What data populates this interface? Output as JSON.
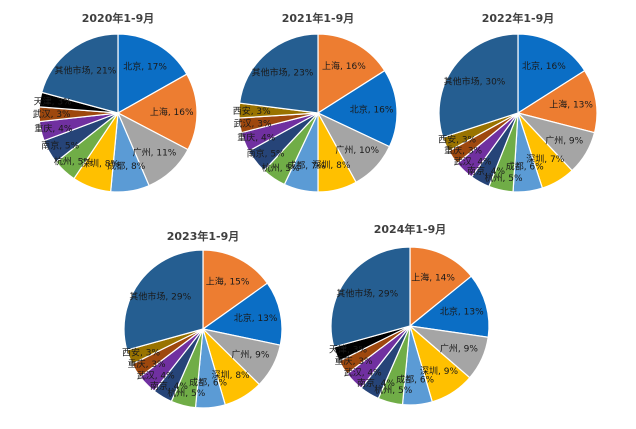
{
  "chart_data": [
    {
      "type": "pie",
      "title": "2020年1-9月",
      "slices": [
        {
          "label": "北京, 17%",
          "value": 17,
          "color": "#0b6ec5"
        },
        {
          "label": "上海, 16%",
          "value": 16,
          "color": "#ed7d31"
        },
        {
          "label": "广州, 11%",
          "value": 11,
          "color": "#a5a5a5"
        },
        {
          "label": "成都, 8%",
          "value": 8,
          "color": "#5b9bd5"
        },
        {
          "label": "深圳, 8%",
          "value": 8,
          "color": "#ffc000"
        },
        {
          "label": "杭州, 5%",
          "value": 5,
          "color": "#70ad47"
        },
        {
          "label": "南京, 5%",
          "value": 5,
          "color": "#264478"
        },
        {
          "label": "重庆, 4%",
          "value": 4,
          "color": "#7030a0"
        },
        {
          "label": "武汉, 3%",
          "value": 3,
          "color": "#9e480e"
        },
        {
          "label": "天津, 3%",
          "value": 3,
          "color": "#000000"
        },
        {
          "label": "其他市场, 21%",
          "value": 21,
          "color": "#255e91"
        }
      ]
    },
    {
      "type": "pie",
      "title": "2021年1-9月",
      "slices": [
        {
          "label": "上海, 16%",
          "value": 16,
          "color": "#ed7d31"
        },
        {
          "label": "北京, 16%",
          "value": 16,
          "color": "#0b6ec5"
        },
        {
          "label": "广州, 10%",
          "value": 10,
          "color": "#a5a5a5"
        },
        {
          "label": "深圳, 8%",
          "value": 8,
          "color": "#ffc000"
        },
        {
          "label": "成都, 7%",
          "value": 7,
          "color": "#5b9bd5"
        },
        {
          "label": "杭州, 5%",
          "value": 5,
          "color": "#70ad47"
        },
        {
          "label": "南京, 5%",
          "value": 5,
          "color": "#264478"
        },
        {
          "label": "重庆, 4%",
          "value": 4,
          "color": "#7030a0"
        },
        {
          "label": "武汉, 3%",
          "value": 3,
          "color": "#9e480e"
        },
        {
          "label": "西安, 3%",
          "value": 3,
          "color": "#997300"
        },
        {
          "label": "其他市场, 23%",
          "value": 23,
          "color": "#255e91"
        }
      ]
    },
    {
      "type": "pie",
      "title": "2022年1-9月",
      "slices": [
        {
          "label": "北京, 16%",
          "value": 16,
          "color": "#0b6ec5"
        },
        {
          "label": "上海, 13%",
          "value": 13,
          "color": "#ed7d31"
        },
        {
          "label": "广州, 9%",
          "value": 9,
          "color": "#a5a5a5"
        },
        {
          "label": "深圳, 7%",
          "value": 7,
          "color": "#ffc000"
        },
        {
          "label": "成都, 6%",
          "value": 6,
          "color": "#5b9bd5"
        },
        {
          "label": "杭州, 5%",
          "value": 5,
          "color": "#70ad47"
        },
        {
          "label": "南京, 4%",
          "value": 4,
          "color": "#264478"
        },
        {
          "label": "武汉, 4%",
          "value": 4,
          "color": "#7030a0"
        },
        {
          "label": "重庆, 3%",
          "value": 3,
          "color": "#9e480e"
        },
        {
          "label": "西安, 3%",
          "value": 3,
          "color": "#997300"
        },
        {
          "label": "其他市场, 30%",
          "value": 30,
          "color": "#255e91"
        }
      ]
    },
    {
      "type": "pie",
      "title": "2023年1-9月",
      "slices": [
        {
          "label": "上海, 15%",
          "value": 15,
          "color": "#ed7d31"
        },
        {
          "label": "北京, 13%",
          "value": 13,
          "color": "#0b6ec5"
        },
        {
          "label": "广州, 9%",
          "value": 9,
          "color": "#a5a5a5"
        },
        {
          "label": "深圳, 8%",
          "value": 8,
          "color": "#ffc000"
        },
        {
          "label": "成都, 6%",
          "value": 6,
          "color": "#5b9bd5"
        },
        {
          "label": "杭州, 5%",
          "value": 5,
          "color": "#70ad47"
        },
        {
          "label": "南京, 4%",
          "value": 4,
          "color": "#264478"
        },
        {
          "label": "武汉, 4%",
          "value": 4,
          "color": "#7030a0"
        },
        {
          "label": "重庆, 3%",
          "value": 3,
          "color": "#9e480e"
        },
        {
          "label": "西安, 3%",
          "value": 3,
          "color": "#997300"
        },
        {
          "label": "其他市场, 29%",
          "value": 29,
          "color": "#255e91"
        }
      ]
    },
    {
      "type": "pie",
      "title": "2024年1-9月",
      "slices": [
        {
          "label": "上海, 14%",
          "value": 14,
          "color": "#ed7d31"
        },
        {
          "label": "北京, 13%",
          "value": 13,
          "color": "#0b6ec5"
        },
        {
          "label": "广州, 9%",
          "value": 9,
          "color": "#a5a5a5"
        },
        {
          "label": "深圳, 9%",
          "value": 9,
          "color": "#ffc000"
        },
        {
          "label": "成都, 6%",
          "value": 6,
          "color": "#5b9bd5"
        },
        {
          "label": "杭州, 5%",
          "value": 5,
          "color": "#70ad47"
        },
        {
          "label": "南京, 4%",
          "value": 4,
          "color": "#264478"
        },
        {
          "label": "武汉, 4%",
          "value": 4,
          "color": "#7030a0"
        },
        {
          "label": "重庆, 3%",
          "value": 3,
          "color": "#9e480e"
        },
        {
          "label": "天津, 3%",
          "value": 3,
          "color": "#000000"
        },
        {
          "label": "其他市场, 29%",
          "value": 29,
          "color": "#255e91"
        }
      ]
    }
  ]
}
